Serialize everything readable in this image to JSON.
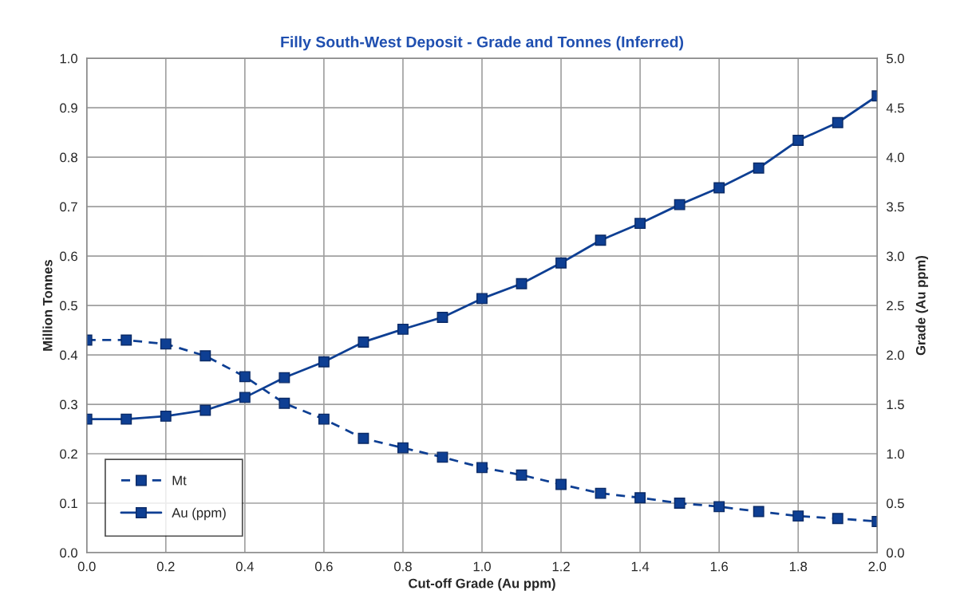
{
  "chart_data": {
    "type": "line",
    "title": "Filly South-West Deposit - Grade and Tonnes (Inferred)",
    "xlabel": "Cut-off Grade (Au ppm)",
    "ylabel": "Million Tonnes",
    "y2label": "Grade (Au ppm)",
    "x": [
      0.0,
      0.1,
      0.2,
      0.3,
      0.4,
      0.5,
      0.6,
      0.7,
      0.8,
      0.9,
      1.0,
      1.1,
      1.2,
      1.3,
      1.4,
      1.5,
      1.6,
      1.7,
      1.8,
      1.9,
      2.0
    ],
    "series": [
      {
        "name": "Mt",
        "color": "#0e3f93",
        "line_style": "dashed",
        "values": [
          0.43,
          0.43,
          0.422,
          0.398,
          0.356,
          0.302,
          0.27,
          0.231,
          0.212,
          0.193,
          0.172,
          0.157,
          0.138,
          0.12,
          0.111,
          0.1,
          0.093,
          0.083,
          0.074,
          0.069,
          0.063
        ]
      },
      {
        "name": "Au (ppm)",
        "color": "#0e3f93",
        "line_style": "solid",
        "axis": "y2",
        "values": [
          1.35,
          1.35,
          1.38,
          1.44,
          1.57,
          1.77,
          1.93,
          2.13,
          2.26,
          2.38,
          2.57,
          2.72,
          2.93,
          3.16,
          3.33,
          3.52,
          3.69,
          3.89,
          4.17,
          4.35,
          4.62
        ]
      }
    ],
    "marker": "square",
    "grid": true,
    "legend": "bottom left",
    "xlim": [
      0.0,
      2.0
    ],
    "xticks": [
      {
        "value": 0,
        "label": "0.0"
      },
      {
        "value": 0.2,
        "label": "0.2"
      },
      {
        "value": 0.4,
        "label": "0.4"
      },
      {
        "value": 0.6,
        "label": "0.6"
      },
      {
        "value": 0.8,
        "label": "0.8"
      },
      {
        "value": 1.0,
        "label": "1.0"
      },
      {
        "value": 1.2,
        "label": "1.2"
      },
      {
        "value": 1.4,
        "label": "1.4"
      },
      {
        "value": 1.6,
        "label": "1.6"
      },
      {
        "value": 1.8,
        "label": "1.8"
      },
      {
        "value": 2.0,
        "label": "2.0"
      }
    ],
    "ylim": [
      0.0,
      1.0
    ],
    "yticks": [
      {
        "value": 0,
        "label": "0.0"
      },
      {
        "value": 0.1,
        "label": "0.1"
      },
      {
        "value": 0.2,
        "label": "0.2"
      },
      {
        "value": 0.3,
        "label": "0.3"
      },
      {
        "value": 0.4,
        "label": "0.4"
      },
      {
        "value": 0.5,
        "label": "0.5"
      },
      {
        "value": 0.6,
        "label": "0.6"
      },
      {
        "value": 0.7,
        "label": "0.7"
      },
      {
        "value": 0.8,
        "label": "0.8"
      },
      {
        "value": 0.9,
        "label": "0.9"
      },
      {
        "value": 1.0,
        "label": "1.0"
      }
    ],
    "y2lim": [
      0.0,
      5.0
    ],
    "y2ticks": [
      {
        "value": 0,
        "label": "0.0"
      },
      {
        "value": 0.5,
        "label": "0.5"
      },
      {
        "value": 1.0,
        "label": "1.0"
      },
      {
        "value": 1.5,
        "label": "1.5"
      },
      {
        "value": 2.0,
        "label": "2.0"
      },
      {
        "value": 2.5,
        "label": "2.5"
      },
      {
        "value": 3.0,
        "label": "3.0"
      },
      {
        "value": 3.5,
        "label": "3.5"
      },
      {
        "value": 4.0,
        "label": "4.0"
      },
      {
        "value": 4.5,
        "label": "4.5"
      },
      {
        "value": 5.0,
        "label": "5.0"
      }
    ]
  }
}
